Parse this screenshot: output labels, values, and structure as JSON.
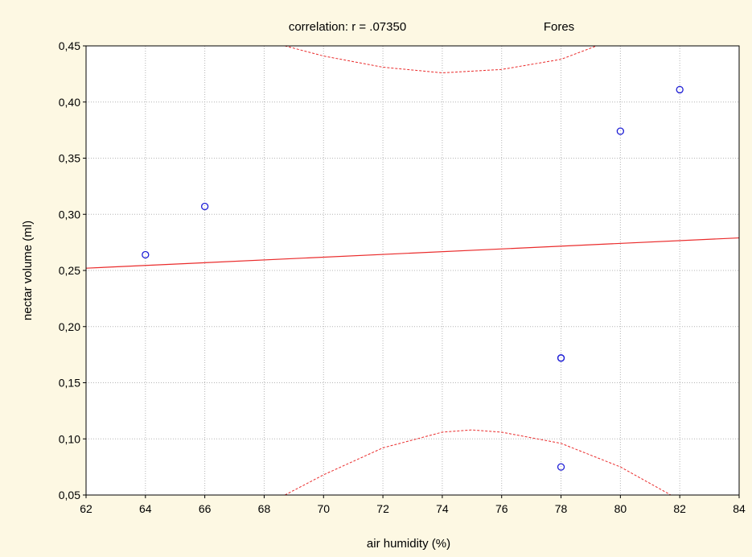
{
  "chart_data": {
    "type": "scatter",
    "title": "correlation: r = .07350",
    "subtitle": "Fores",
    "xlabel": "air humidity (%)",
    "ylabel": "nectar volume (ml)",
    "xlim": [
      62,
      84
    ],
    "ylim": [
      0.05,
      0.45
    ],
    "x_ticks": [
      62,
      64,
      66,
      68,
      70,
      72,
      74,
      76,
      78,
      80,
      82,
      84
    ],
    "x_tick_labels": [
      "62",
      "64",
      "66",
      "68",
      "70",
      "72",
      "74",
      "76",
      "78",
      "80",
      "82",
      "84"
    ],
    "y_ticks": [
      0.05,
      0.1,
      0.15,
      0.2,
      0.25,
      0.3,
      0.35,
      0.4,
      0.45
    ],
    "y_tick_labels": [
      "0,05",
      "0,10",
      "0,15",
      "0,20",
      "0,25",
      "0,30",
      "0,35",
      "0,40",
      "0,45"
    ],
    "grid": true,
    "points": [
      {
        "x": 64,
        "y": 0.264
      },
      {
        "x": 66,
        "y": 0.307
      },
      {
        "x": 78,
        "y": 0.172
      },
      {
        "x": 78,
        "y": 0.172
      },
      {
        "x": 78,
        "y": 0.075
      },
      {
        "x": 80,
        "y": 0.374
      },
      {
        "x": 82,
        "y": 0.411
      }
    ],
    "regression": {
      "x": [
        62,
        84
      ],
      "y": [
        0.252,
        0.279
      ]
    },
    "confidence_band": {
      "upper": [
        {
          "x": 68.7,
          "y": 0.45
        },
        {
          "x": 70,
          "y": 0.441
        },
        {
          "x": 72,
          "y": 0.431
        },
        {
          "x": 74,
          "y": 0.426
        },
        {
          "x": 76,
          "y": 0.429
        },
        {
          "x": 78,
          "y": 0.438
        },
        {
          "x": 79.2,
          "y": 0.45
        }
      ],
      "lower": [
        {
          "x": 68.7,
          "y": 0.05
        },
        {
          "x": 70,
          "y": 0.068
        },
        {
          "x": 72,
          "y": 0.092
        },
        {
          "x": 74,
          "y": 0.106
        },
        {
          "x": 75,
          "y": 0.108
        },
        {
          "x": 76,
          "y": 0.106
        },
        {
          "x": 78,
          "y": 0.096
        },
        {
          "x": 80,
          "y": 0.075
        },
        {
          "x": 81.7,
          "y": 0.05
        }
      ]
    },
    "colors": {
      "marker": "#1f1fd6",
      "regression": "#ea2b2b",
      "background": "#fdf8e3",
      "plot_background": "#ffffff",
      "grid": "#b4b4b4"
    }
  }
}
